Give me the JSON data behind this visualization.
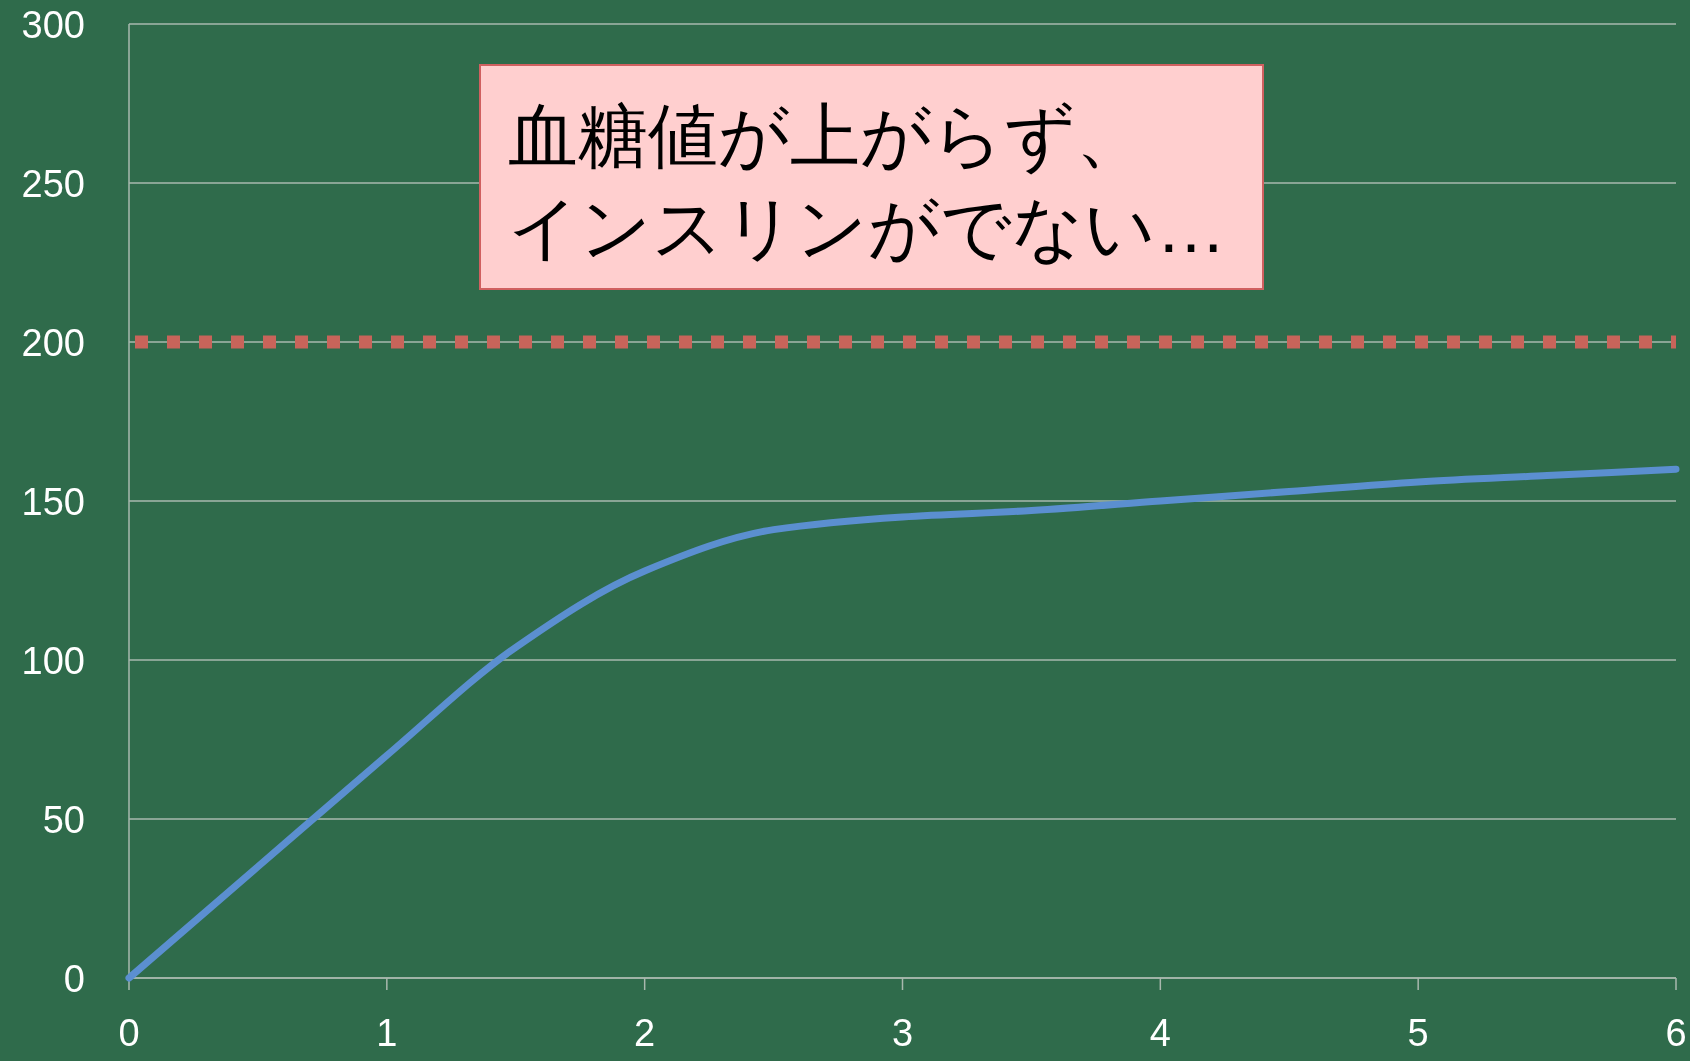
{
  "chart_data": {
    "type": "line",
    "x": [
      0,
      0.5,
      1,
      1.5,
      2,
      2.5,
      3,
      3.5,
      4,
      4.5,
      5,
      5.5,
      6
    ],
    "values": [
      0,
      35,
      70,
      104,
      128,
      141,
      145,
      147,
      150,
      153,
      156,
      158,
      160
    ],
    "color": "#5b8fd0",
    "xlim": [
      0,
      6
    ],
    "ylim": [
      0,
      300
    ],
    "xticks": [
      0,
      1,
      2,
      3,
      4,
      5,
      6
    ],
    "yticks": [
      0,
      50,
      100,
      150,
      200,
      250,
      300
    ],
    "grid": "y",
    "ref_lines": [
      {
        "axis": "y",
        "value": 200,
        "color": "#c8645a",
        "line_style": "dotted"
      }
    ],
    "annotations": [
      "血糖値が上がらず、",
      "インスリンがでない…"
    ]
  }
}
